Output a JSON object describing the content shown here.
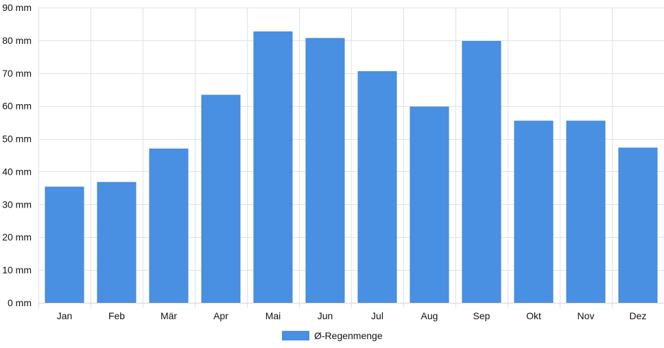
{
  "chart_data": {
    "type": "bar",
    "categories": [
      "Jan",
      "Feb",
      "Mär",
      "Apr",
      "Mai",
      "Jun",
      "Jul",
      "Aug",
      "Sep",
      "Okt",
      "Nov",
      "Dez"
    ],
    "series": [
      {
        "name": "Ø-Regenmenge",
        "values": [
          35.3,
          36.7,
          46.9,
          63.3,
          82.6,
          80.6,
          70.5,
          59.7,
          79.7,
          55.4,
          55.4,
          47.2
        ],
        "color": "#4a90e2"
      }
    ],
    "y_ticks": [
      0,
      10,
      20,
      30,
      40,
      50,
      60,
      70,
      80,
      90
    ],
    "y_tick_labels": [
      "0 mm",
      "10 mm",
      "20 mm",
      "30 mm",
      "40 mm",
      "50 mm",
      "60 mm",
      "70 mm",
      "80 mm",
      "90 mm"
    ],
    "ylim": [
      0,
      90
    ],
    "grid": true,
    "legend_position": "bottom-center"
  }
}
